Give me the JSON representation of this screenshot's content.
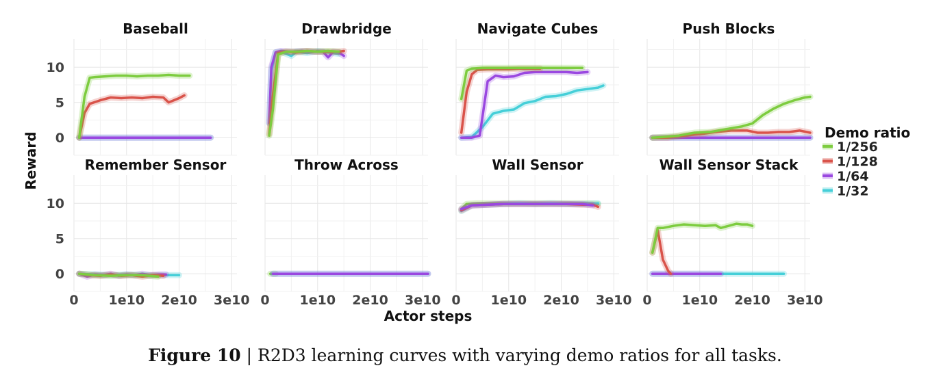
{
  "colors": {
    "1/256": "#7dcc3f",
    "1/128": "#d9534a",
    "1/64": "#9a48e0",
    "1/32": "#45cfd8"
  },
  "caption": {
    "figure_number": "Figure 10",
    "separator": " | ",
    "text": "R2D3 learning curves with varying demo ratios for all tasks."
  },
  "chart_data": {
    "type": "line",
    "xlabel": "Actor steps",
    "ylabel": "Reward",
    "xlim": [
      0,
      31000000000.0
    ],
    "ylim": [
      -2.5,
      14
    ],
    "xticks": [
      0,
      10000000000.0,
      20000000000.0,
      30000000000.0
    ],
    "xtick_labels": [
      "0",
      "1e10",
      "2e10",
      "3e10"
    ],
    "yticks": [
      0,
      5,
      10
    ],
    "ytick_labels": [
      "0",
      "5",
      "10"
    ],
    "legend": {
      "title": "Demo ratio",
      "entries": [
        "1/256",
        "1/128",
        "1/64",
        "1/32"
      ],
      "placement": "right"
    },
    "panels": [
      {
        "title": "Baseball",
        "series": [
          {
            "name": "1/32",
            "x": [
              1000000000.0,
              26000000000.0
            ],
            "y": [
              0,
              0
            ]
          },
          {
            "name": "1/64",
            "x": [
              1000000000.0,
              26000000000.0
            ],
            "y": [
              0,
              0
            ]
          },
          {
            "name": "1/128",
            "x": [
              1000000000.0,
              2000000000.0,
              3000000000.0,
              5000000000.0,
              7000000000.0,
              9000000000.0,
              11000000000.0,
              13000000000.0,
              15000000000.0,
              17000000000.0,
              18000000000.0,
              19000000000.0,
              20000000000.0,
              21000000000.0
            ],
            "y": [
              0,
              3.5,
              4.8,
              5.3,
              5.7,
              5.6,
              5.7,
              5.6,
              5.8,
              5.7,
              5.0,
              5.3,
              5.6,
              6.0
            ]
          },
          {
            "name": "1/256",
            "x": [
              1000000000.0,
              2000000000.0,
              3000000000.0,
              4000000000.0,
              6000000000.0,
              8000000000.0,
              10000000000.0,
              12000000000.0,
              14000000000.0,
              16000000000.0,
              18000000000.0,
              20000000000.0,
              22000000000.0
            ],
            "y": [
              0,
              5.8,
              8.5,
              8.6,
              8.7,
              8.8,
              8.8,
              8.7,
              8.8,
              8.8,
              8.9,
              8.8,
              8.8
            ]
          }
        ]
      },
      {
        "title": "Drawbridge",
        "series": [
          {
            "name": "1/32",
            "x": [
              800000000.0,
              1200000000.0,
              2000000000.0,
              3000000000.0,
              4000000000.0,
              5000000000.0,
              6000000000.0,
              8000000000.0,
              10000000000.0,
              12000000000.0,
              14000000000.0
            ],
            "y": [
              2,
              9.5,
              12.1,
              12.2,
              11.9,
              11.6,
              12.2,
              12.0,
              12.3,
              12.1,
              11.9
            ]
          },
          {
            "name": "1/64",
            "x": [
              800000000.0,
              1200000000.0,
              2000000000.0,
              3000000000.0,
              5000000000.0,
              7000000000.0,
              9000000000.0,
              11000000000.0,
              12000000000.0,
              13000000000.0,
              14000000000.0,
              15000000000.0
            ],
            "y": [
              2.1,
              10,
              12.1,
              12.3,
              12.2,
              12.3,
              12.2,
              12.2,
              11.4,
              12.2,
              12.1,
              11.6
            ]
          },
          {
            "name": "1/128",
            "x": [
              800000000.0,
              1500000000.0,
              2500000000.0,
              4000000000.0,
              6000000000.0,
              8000000000.0,
              10000000000.0,
              12000000000.0,
              14000000000.0,
              15000000000.0
            ],
            "y": [
              0.5,
              6,
              12,
              12.2,
              12.1,
              12.3,
              12.2,
              12.2,
              12.2,
              12.3
            ]
          },
          {
            "name": "1/256",
            "x": [
              800000000.0,
              1500000000.0,
              2500000000.0,
              4000000000.0,
              6000000000.0,
              8000000000.0,
              10000000000.0,
              12000000000.0,
              14000000000.0
            ],
            "y": [
              0.3,
              4,
              11.8,
              12.2,
              12.2,
              12.3,
              12.2,
              12.3,
              12.2
            ]
          }
        ]
      },
      {
        "title": "Navigate Cubes",
        "series": [
          {
            "name": "1/32",
            "x": [
              1000000000.0,
              3000000000.0,
              5000000000.0,
              7000000000.0,
              9000000000.0,
              11000000000.0,
              13000000000.0,
              15000000000.0,
              17000000000.0,
              19000000000.0,
              21000000000.0,
              23000000000.0,
              25000000000.0,
              27000000000.0,
              28000000000.0
            ],
            "y": [
              0,
              0.1,
              1.5,
              3.4,
              3.8,
              4.0,
              4.9,
              5.2,
              5.8,
              5.9,
              6.2,
              6.7,
              6.9,
              7.1,
              7.4
            ]
          },
          {
            "name": "1/64",
            "x": [
              1000000000.0,
              3000000000.0,
              4500000000.0,
              6000000000.0,
              7500000000.0,
              9000000000.0,
              11000000000.0,
              13000000000.0,
              15000000000.0,
              17000000000.0,
              19000000000.0,
              21000000000.0,
              23000000000.0,
              25000000000.0
            ],
            "y": [
              0,
              0,
              0.3,
              8.0,
              8.8,
              8.6,
              8.7,
              9.2,
              9.3,
              9.3,
              9.3,
              9.3,
              9.2,
              9.3
            ]
          },
          {
            "name": "1/128",
            "x": [
              1000000000.0,
              2000000000.0,
              3000000000.0,
              4000000000.0,
              6000000000.0,
              8000000000.0,
              10000000000.0,
              12000000000.0,
              14000000000.0,
              16000000000.0
            ],
            "y": [
              0.7,
              6.5,
              9.0,
              9.6,
              9.7,
              9.7,
              9.7,
              9.8,
              9.8,
              9.8
            ]
          },
          {
            "name": "1/256",
            "x": [
              1000000000.0,
              2000000000.0,
              3000000000.0,
              5000000000.0,
              7000000000.0,
              9000000000.0,
              12000000000.0,
              15000000000.0,
              18000000000.0,
              21000000000.0,
              24000000000.0
            ],
            "y": [
              5.5,
              9.5,
              9.8,
              9.9,
              9.9,
              9.9,
              9.9,
              9.9,
              9.9,
              9.9,
              9.9
            ]
          }
        ]
      },
      {
        "title": "Push Blocks",
        "series": [
          {
            "name": "1/32",
            "x": [
              1000000000.0,
              31000000000.0
            ],
            "y": [
              0,
              0
            ]
          },
          {
            "name": "1/64",
            "x": [
              1000000000.0,
              31000000000.0
            ],
            "y": [
              0,
              0
            ]
          },
          {
            "name": "1/128",
            "x": [
              1000000000.0,
              4000000000.0,
              7000000000.0,
              10000000000.0,
              13000000000.0,
              16000000000.0,
              19000000000.0,
              21000000000.0,
              23000000000.0,
              25000000000.0,
              27000000000.0,
              29000000000.0,
              31000000000.0
            ],
            "y": [
              0,
              0,
              0.3,
              0.5,
              0.8,
              1.0,
              1.0,
              0.7,
              0.7,
              0.8,
              0.8,
              1.0,
              0.7
            ]
          },
          {
            "name": "1/256",
            "x": [
              1000000000.0,
              3000000000.0,
              6000000000.0,
              9000000000.0,
              12000000000.0,
              15000000000.0,
              18000000000.0,
              20000000000.0,
              22000000000.0,
              24000000000.0,
              26000000000.0,
              28000000000.0,
              30000000000.0,
              31000000000.0
            ],
            "y": [
              0,
              0.1,
              0.3,
              0.7,
              0.8,
              1.2,
              1.6,
              2.0,
              3.2,
              4.1,
              4.8,
              5.3,
              5.7,
              5.8
            ]
          }
        ]
      },
      {
        "title": "Remember Sensor",
        "series": [
          {
            "name": "1/32",
            "x": [
              1000000000.0,
              4000000000.0,
              7000000000.0,
              10000000000.0,
              13000000000.0,
              16000000000.0,
              19000000000.0,
              20000000000.0
            ],
            "y": [
              0,
              -0.1,
              -0.2,
              -0.1,
              -0.2,
              -0.2,
              -0.2,
              -0.2
            ]
          },
          {
            "name": "1/64",
            "x": [
              1000000000.0,
              2500000000.0,
              4000000000.0,
              5500000000.0,
              7000000000.0,
              8500000000.0,
              10000000000.0,
              11500000000.0,
              13000000000.0,
              14500000000.0,
              16000000000.0,
              17500000000.0
            ],
            "y": [
              0,
              -0.4,
              -0.1,
              -0.2,
              0,
              -0.3,
              -0.1,
              -0.2,
              0,
              -0.2,
              -0.1,
              -0.1
            ]
          },
          {
            "name": "1/128",
            "x": [
              1000000000.0,
              3000000000.0,
              5000000000.0,
              7000000000.0,
              9000000000.0,
              11000000000.0,
              13000000000.0,
              15000000000.0,
              17000000000.0
            ],
            "y": [
              0,
              -0.2,
              -0.3,
              -0.1,
              -0.3,
              -0.2,
              -0.4,
              -0.2,
              -0.3
            ]
          },
          {
            "name": "1/256",
            "x": [
              1000000000.0,
              4000000000.0,
              7000000000.0,
              10000000000.0,
              13000000000.0,
              16000000000.0
            ],
            "y": [
              0,
              -0.2,
              -0.3,
              -0.2,
              -0.2,
              -0.4
            ]
          }
        ]
      },
      {
        "title": "Throw Across",
        "series": [
          {
            "name": "1/256",
            "x": [
              1000000000.0,
              2000000000.0
            ],
            "y": [
              0,
              0
            ]
          },
          {
            "name": "1/32",
            "x": [
              1500000000.0,
              31000000000.0
            ],
            "y": [
              0,
              0
            ]
          },
          {
            "name": "1/64",
            "x": [
              1500000000.0,
              31000000000.0
            ],
            "y": [
              0,
              0
            ]
          }
        ]
      },
      {
        "title": "Wall Sensor",
        "series": [
          {
            "name": "1/256",
            "x": [
              1000000000.0,
              2000000000.0,
              4000000000.0,
              7000000000.0,
              10000000000.0,
              13000000000.0,
              16000000000.0,
              19000000000.0,
              22000000000.0,
              25000000000.0,
              27000000000.0
            ],
            "y": [
              9.2,
              9.9,
              10.0,
              10.0,
              10.0,
              10.0,
              10.0,
              10.0,
              10.0,
              10.0,
              9.9
            ]
          },
          {
            "name": "1/32",
            "x": [
              1000000000.0,
              3000000000.0,
              6000000000.0,
              9000000000.0,
              12000000000.0,
              15000000000.0,
              18000000000.0,
              21000000000.0,
              24000000000.0,
              27000000000.0
            ],
            "y": [
              8.9,
              9.7,
              9.8,
              9.9,
              10.0,
              9.9,
              10.0,
              9.9,
              9.9,
              10.0
            ]
          },
          {
            "name": "1/128",
            "x": [
              1000000000.0,
              3000000000.0,
              6000000000.0,
              9000000000.0,
              12000000000.0,
              15000000000.0,
              18000000000.0,
              21000000000.0,
              24000000000.0,
              26000000000.0,
              27000000000.0
            ],
            "y": [
              9.0,
              9.7,
              9.8,
              9.9,
              9.9,
              9.9,
              9.9,
              9.9,
              9.8,
              9.8,
              9.5
            ]
          },
          {
            "name": "1/64",
            "x": [
              1000000000.0,
              3000000000.0,
              6000000000.0,
              9000000000.0,
              12000000000.0,
              15000000000.0,
              18000000000.0,
              21000000000.0,
              24000000000.0,
              26000000000.0
            ],
            "y": [
              9.2,
              9.7,
              9.8,
              9.9,
              9.9,
              9.9,
              9.9,
              9.9,
              9.9,
              9.7
            ]
          }
        ]
      },
      {
        "title": "Wall Sensor Stack",
        "series": [
          {
            "name": "1/32",
            "x": [
              1000000000.0,
              26000000000.0
            ],
            "y": [
              0,
              0
            ]
          },
          {
            "name": "1/64",
            "x": [
              1000000000.0,
              14000000000.0
            ],
            "y": [
              0,
              0
            ]
          },
          {
            "name": "1/128",
            "x": [
              1000000000.0,
              2000000000.0,
              3000000000.0,
              4000000000.0,
              4500000000.0
            ],
            "y": [
              3.0,
              6.2,
              2.0,
              0.4,
              0
            ]
          },
          {
            "name": "1/256",
            "x": [
              1000000000.0,
              2000000000.0,
              3000000000.0,
              5000000000.0,
              7000000000.0,
              9000000000.0,
              11000000000.0,
              13000000000.0,
              14000000000.0,
              15000000000.0,
              16000000000.0,
              17000000000.0,
              18000000000.0,
              19000000000.0,
              20000000000.0
            ],
            "y": [
              3.0,
              6.5,
              6.5,
              6.8,
              7.0,
              6.9,
              6.8,
              6.9,
              6.5,
              6.7,
              6.9,
              7.1,
              7.0,
              7.0,
              6.8
            ]
          }
        ]
      }
    ]
  }
}
